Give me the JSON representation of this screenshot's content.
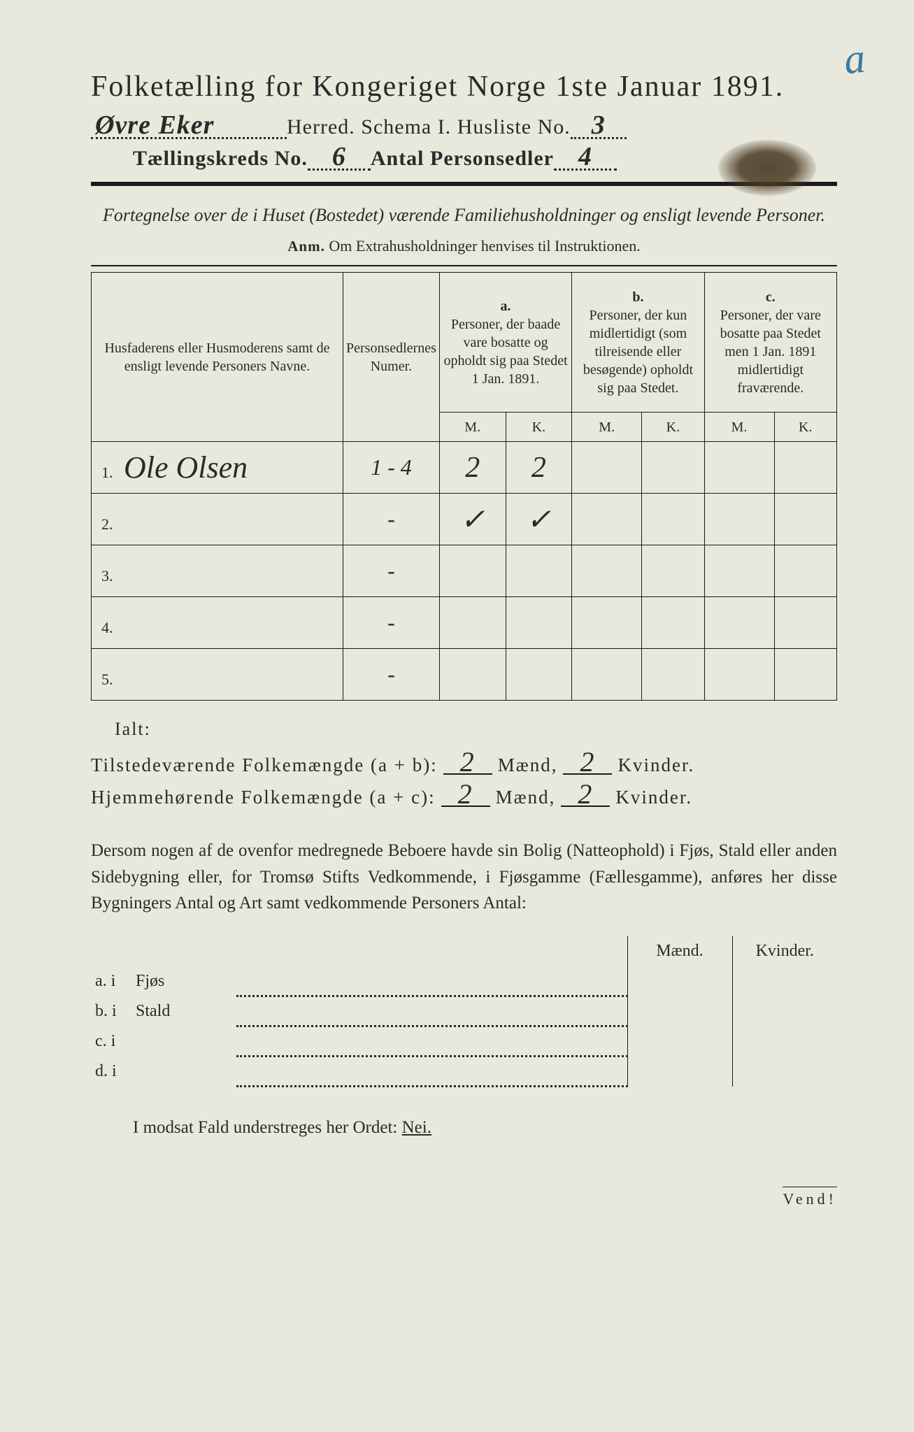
{
  "corner_mark": "a",
  "title": "Folketælling for Kongeriget Norge 1ste Januar 1891.",
  "line2": {
    "herred_value": "Øvre Eker",
    "herred_label": " Herred.   Schema I.   Husliste No. ",
    "husliste_value": "3"
  },
  "line3": {
    "prefix": "Tællingskreds No. ",
    "kreds_value": "6",
    "middle": "   Antal Personsedler ",
    "sedler_value": "4"
  },
  "intro": "Fortegnelse over de i Huset (Bostedet) værende Familiehusholdninger og ensligt levende Personer.",
  "anm_label": "Anm.",
  "anm_text": "  Om Extrahusholdninger henvises til Instruktionen.",
  "table": {
    "col1": "Husfaderens eller Husmoderens samt de ensligt levende Personers Navne.",
    "col2": "Personsedlernes Numer.",
    "a_label": "a.",
    "a_text": "Personer, der baade vare bosatte og opholdt sig paa Stedet 1 Jan. 1891.",
    "b_label": "b.",
    "b_text": "Personer, der kun midlertidigt (som tilreisende eller besøgende) opholdt sig paa Stedet.",
    "c_label": "c.",
    "c_text": "Personer, der vare bosatte paa Stedet men 1 Jan. 1891 midlertidigt fraværende.",
    "M": "M.",
    "K": "K.",
    "rows": [
      {
        "n": "1.",
        "name": "Ole Olsen",
        "numer": "1 - 4",
        "aM": "2",
        "aK": "2",
        "bM": "",
        "bK": "",
        "cM": "",
        "cK": ""
      },
      {
        "n": "2.",
        "name": "",
        "numer": "-",
        "aM": "✓",
        "aK": "✓",
        "bM": "",
        "bK": "",
        "cM": "",
        "cK": ""
      },
      {
        "n": "3.",
        "name": "",
        "numer": "-",
        "aM": "",
        "aK": "",
        "bM": "",
        "bK": "",
        "cM": "",
        "cK": ""
      },
      {
        "n": "4.",
        "name": "",
        "numer": "-",
        "aM": "",
        "aK": "",
        "bM": "",
        "bK": "",
        "cM": "",
        "cK": ""
      },
      {
        "n": "5.",
        "name": "",
        "numer": "-",
        "aM": "",
        "aK": "",
        "bM": "",
        "bK": "",
        "cM": "",
        "cK": ""
      }
    ]
  },
  "ialt": "Ialt:",
  "sum1": {
    "label": "Tilstedeværende Folkemængde (a + b): ",
    "m": "2",
    "mlabel": " Mænd, ",
    "k": "2",
    "klabel": " Kvinder."
  },
  "sum2": {
    "label": "Hjemmehørende Folkemængde (a + c): ",
    "m": "2",
    "mlabel": " Mænd, ",
    "k": "2",
    "klabel": " Kvinder."
  },
  "para": "Dersom nogen af de ovenfor medregnede Beboere havde sin Bolig (Natteophold) i Fjøs, Stald eller anden Sidebygning eller, for Tromsø Stifts Vedkommende, i Fjøsgamme (Fællesgamme), anføres her disse Bygningers Antal og Art samt vedkommende Personers Antal:",
  "side": {
    "head_m": "Mænd.",
    "head_k": "Kvinder.",
    "rows": [
      {
        "lab": "a.  i",
        "name": "Fjøs"
      },
      {
        "lab": "b.  i",
        "name": "Stald"
      },
      {
        "lab": "c.  i",
        "name": ""
      },
      {
        "lab": "d.  i",
        "name": ""
      }
    ]
  },
  "nei_text": "I modsat Fald understreges her Ordet: ",
  "nei_word": "Nei.",
  "vend": "Vend!"
}
